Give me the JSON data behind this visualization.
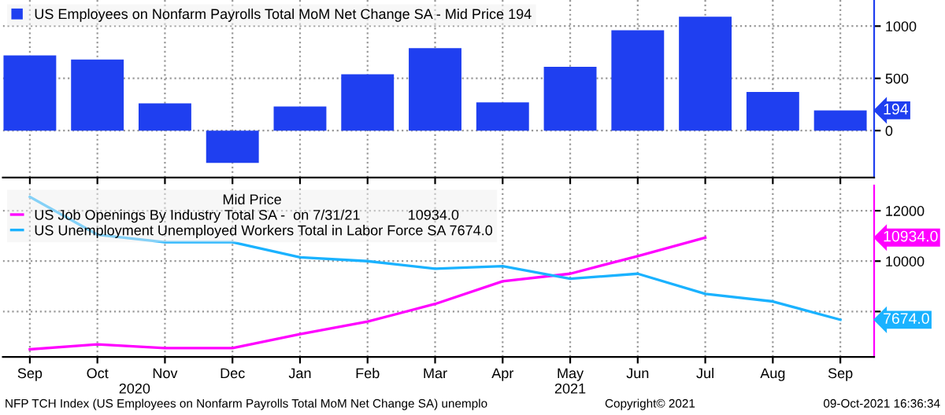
{
  "chart_data": [
    {
      "type": "bar",
      "categories": [
        null,
        null,
        null,
        null,
        null,
        null,
        null,
        null,
        null,
        null,
        null,
        null,
        null
      ],
      "series": [
        {
          "name": "US Employees on Nonfarm Payrolls Total MoM Net Change SA - Mid Price 194",
          "color": "#1f3ff0",
          "values": [
            720,
            680,
            260,
            -310,
            230,
            540,
            790,
            270,
            610,
            960,
            1090,
            370,
            194
          ]
        }
      ],
      "ylim": [
        -450,
        1250
      ],
      "yticks": [
        0,
        500,
        1000
      ],
      "grid": true,
      "legend": "top left",
      "tick_labels": "y",
      "annotations": [
        "194"
      ]
    },
    {
      "type": "line",
      "categories": [
        "Sep",
        "Oct",
        "Nov",
        "Dec",
        "Jan",
        "Feb",
        "Mar",
        "Apr",
        "May",
        "Jun",
        "Jul",
        "Aug",
        "Sep"
      ],
      "legend_title": "Mid Price",
      "series": [
        {
          "name": "US Job Openings By Industry Total SA -  on 7/31/21            10934.0",
          "color": "#ff00ff",
          "values": [
            6500,
            6700,
            6550,
            6550,
            7100,
            7600,
            8300,
            9200,
            9500,
            10200,
            10934,
            null,
            null
          ]
        },
        {
          "name": "US Unemployment Unemployed Workers Total in Labor Force SA 7674.0",
          "color": "#1ab2ff",
          "values": [
            12550,
            11050,
            10750,
            10750,
            10150,
            10000,
            9700,
            9800,
            9300,
            9500,
            8700,
            8400,
            7674
          ]
        }
      ],
      "ylim": [
        6200,
        13000
      ],
      "yticks": [
        {
          "value": 8000,
          "label": null
        },
        10000,
        12000
      ],
      "grid": true,
      "legend": "top left",
      "annotations": [
        "10934.0",
        "7674.0",
        "2020",
        "2021",
        "NFP TCH Index (US Employees on Nonfarm Payrolls Total MoM Net Change SA) unemplo",
        "Copyright© 2021",
        "09-Oct-2021 16:36:34"
      ]
    }
  ]
}
